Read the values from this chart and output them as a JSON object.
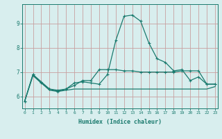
{
  "xlabel": "Humidex (Indice chaleur)",
  "x": [
    0,
    1,
    2,
    3,
    4,
    5,
    6,
    7,
    8,
    9,
    10,
    11,
    12,
    13,
    14,
    15,
    16,
    17,
    18,
    19,
    20,
    21,
    22,
    23
  ],
  "line1": [
    5.8,
    6.9,
    6.6,
    6.3,
    6.2,
    6.3,
    6.55,
    6.6,
    6.55,
    6.5,
    6.9,
    8.3,
    9.3,
    9.35,
    9.1,
    8.2,
    7.55,
    7.4,
    7.05,
    7.1,
    6.65,
    6.8,
    6.5,
    6.5
  ],
  "line2": [
    5.8,
    6.9,
    6.55,
    6.3,
    6.25,
    6.3,
    6.45,
    6.65,
    6.65,
    7.1,
    7.1,
    7.1,
    7.05,
    7.05,
    7.0,
    7.0,
    7.0,
    7.0,
    7.0,
    7.05,
    7.05,
    7.05,
    6.5,
    6.5
  ],
  "line3": [
    5.8,
    6.85,
    6.55,
    6.25,
    6.2,
    6.25,
    6.3,
    6.3,
    6.3,
    6.3,
    6.3,
    6.3,
    6.3,
    6.3,
    6.3,
    6.3,
    6.3,
    6.3,
    6.3,
    6.3,
    6.3,
    6.3,
    6.3,
    6.4
  ],
  "ylim": [
    5.5,
    9.8
  ],
  "yticks": [
    6,
    7,
    8,
    9
  ],
  "xlim": [
    -0.3,
    23.3
  ],
  "line_color": "#1a7a6e",
  "bg_color": "#d8eeee",
  "grid_color_v": "#c8a0a0",
  "grid_color_h": "#c0d4d4"
}
